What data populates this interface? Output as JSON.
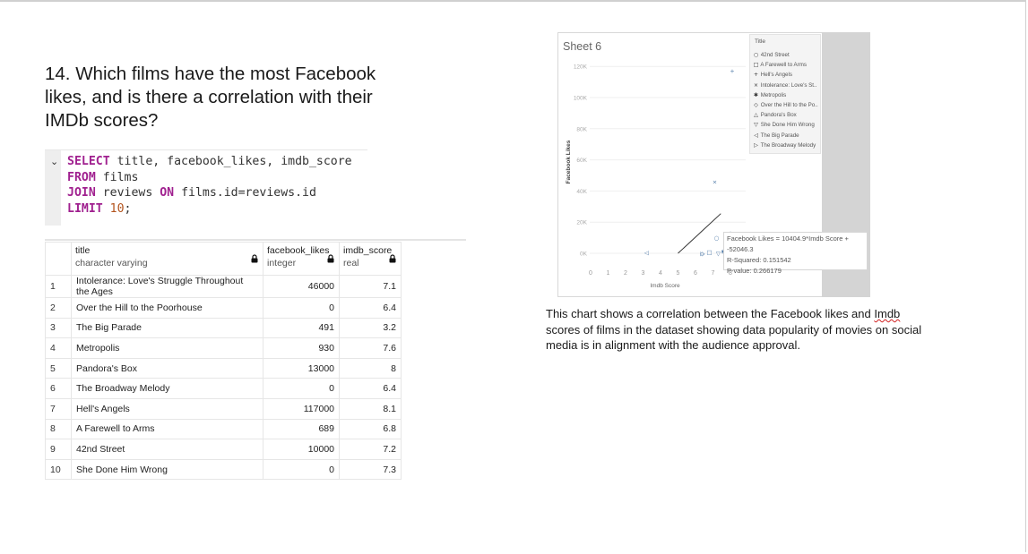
{
  "question": "14. Which films have the most Facebook likes, and is there a correlation with their IMDb scores?",
  "sql": {
    "line1_kw": "SELECT",
    "line1_rest": " title, facebook_likes, imdb_score",
    "line2_kw": "FROM",
    "line2_rest": " films",
    "line3_kw1": "JOIN",
    "line3_mid": " reviews ",
    "line3_kw2": "ON",
    "line3_rest": " films.id=reviews.id",
    "line4_kw": "LIMIT",
    "line4_num": "10",
    "line4_end": ";"
  },
  "table": {
    "columns": [
      {
        "name": "title",
        "type": "character varying"
      },
      {
        "name": "facebook_likes",
        "type": "integer"
      },
      {
        "name": "imdb_score",
        "type": "real"
      }
    ],
    "rows": [
      {
        "idx": "1",
        "title": "Intolerance: Love's Struggle Throughout the Ages",
        "likes": "46000",
        "score": "7.1"
      },
      {
        "idx": "2",
        "title": "Over the Hill to the Poorhouse",
        "likes": "0",
        "score": "6.4"
      },
      {
        "idx": "3",
        "title": "The Big Parade",
        "likes": "491",
        "score": "3.2"
      },
      {
        "idx": "4",
        "title": "Metropolis",
        "likes": "930",
        "score": "7.6"
      },
      {
        "idx": "5",
        "title": "Pandora's Box",
        "likes": "13000",
        "score": "8"
      },
      {
        "idx": "6",
        "title": "The Broadway Melody",
        "likes": "0",
        "score": "6.4"
      },
      {
        "idx": "7",
        "title": "Hell's Angels",
        "likes": "117000",
        "score": "8.1"
      },
      {
        "idx": "8",
        "title": "A Farewell to Arms",
        "likes": "689",
        "score": "6.8"
      },
      {
        "idx": "9",
        "title": "42nd Street",
        "likes": "10000",
        "score": "7.2"
      },
      {
        "idx": "10",
        "title": "She Done Him Wrong",
        "likes": "0",
        "score": "7.3"
      }
    ]
  },
  "chart_data": {
    "type": "scatter",
    "title": "Sheet 6",
    "xlabel": "Imdb Score",
    "ylabel": "Facebook Likes",
    "xlim": [
      0,
      8.2
    ],
    "ylim": [
      0,
      130000
    ],
    "x_ticks": [
      "0",
      "1",
      "2",
      "3",
      "4",
      "5",
      "6",
      "7",
      "8"
    ],
    "y_ticks": [
      "0K",
      "20K",
      "40K",
      "60K",
      "80K",
      "100K",
      "120K"
    ],
    "legend_title": "Title",
    "legend_placement": "top-right",
    "series": [
      {
        "name": "42nd Street",
        "marker": "○",
        "x": 7.2,
        "y": 10000
      },
      {
        "name": "A Farewell to Arms",
        "marker": "□",
        "x": 6.8,
        "y": 689
      },
      {
        "name": "Hell's Angels",
        "marker": "+",
        "x": 8.1,
        "y": 117000
      },
      {
        "name": "Intolerance: Love's St..",
        "marker": "×",
        "x": 7.1,
        "y": 46000
      },
      {
        "name": "Metropolis",
        "marker": "✱",
        "x": 7.6,
        "y": 930
      },
      {
        "name": "Over the Hill to the Po..",
        "marker": "◇",
        "x": 6.4,
        "y": 0
      },
      {
        "name": "Pandora's Box",
        "marker": "△",
        "x": 8,
        "y": 13000
      },
      {
        "name": "She Done Him Wrong",
        "marker": "▽",
        "x": 7.3,
        "y": 0
      },
      {
        "name": "The Big Parade",
        "marker": "◁",
        "x": 3.2,
        "y": 491
      },
      {
        "name": "The Broadway Melody",
        "marker": "▷",
        "x": 6.4,
        "y": 0
      }
    ],
    "trend_line": {
      "slope": 10404.9,
      "intercept": -52046.3
    },
    "trend_tooltip": [
      "Facebook Likes = 10404.9*Imdb Score + -52046.3",
      "R-Squared: 0.151542",
      "P-value: 0.266179"
    ],
    "colors": {
      "marker": "#4e79a7",
      "trend": "#333333"
    }
  },
  "description": {
    "before": "This chart shows a correlation between the Facebook likes and ",
    "flagged": "Imdb",
    "after": " scores of films in the dataset showing data popularity of movies on social media is in alignment with the audience approval."
  }
}
